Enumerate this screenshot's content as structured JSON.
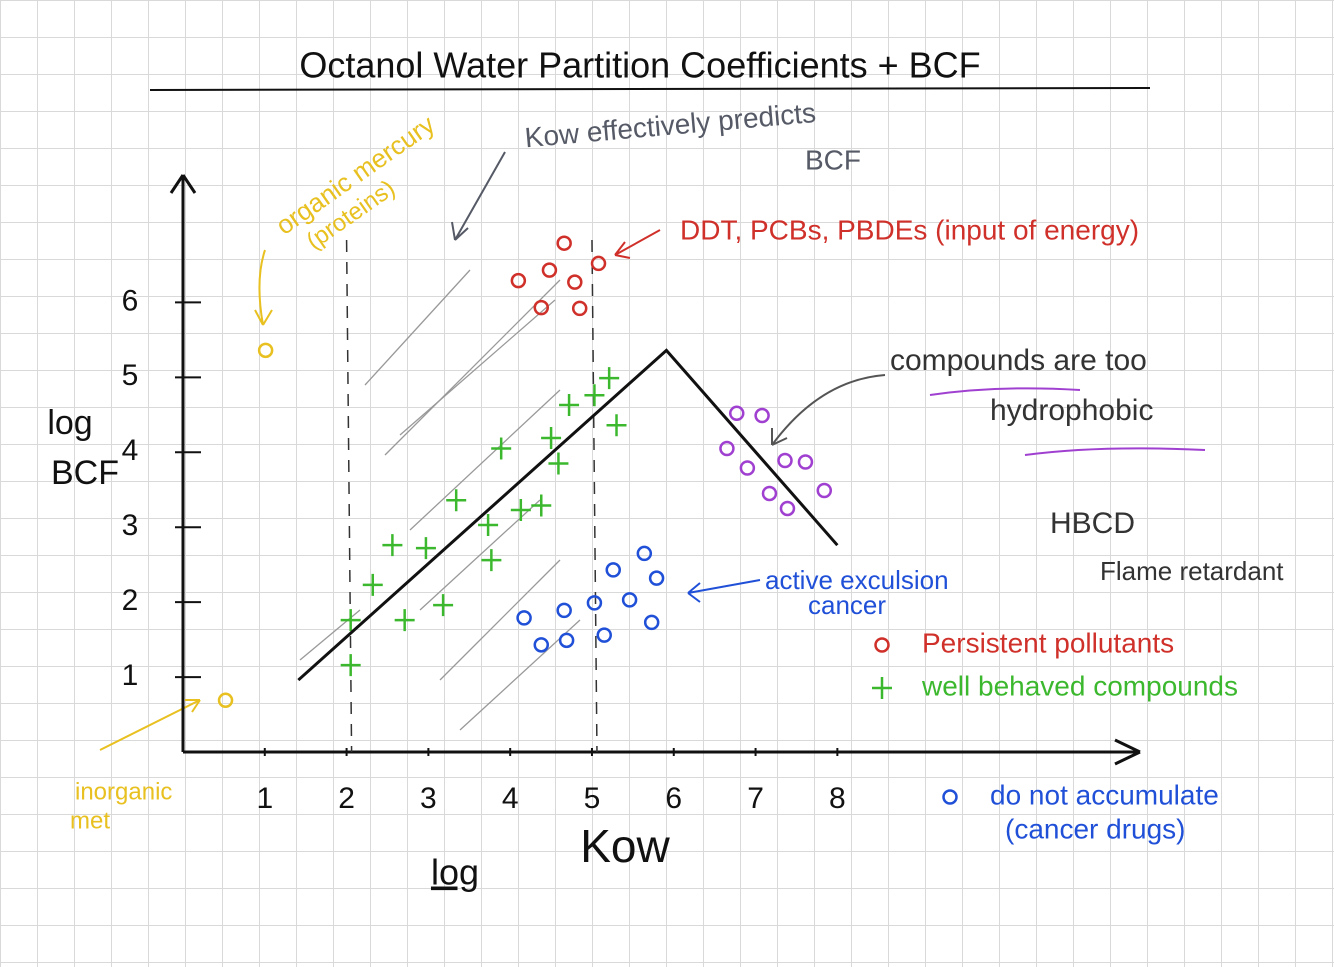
{
  "chart_data": {
    "type": "scatter",
    "title": "Octanol Water Partition Coefficients + BCF",
    "xlabel": "Kow",
    "xlabel_prefix": "log",
    "ylabel": [
      "log",
      "BCF"
    ],
    "xlim": [
      0,
      11.7
    ],
    "ylim": [
      0,
      7.7
    ],
    "xticks": [
      1,
      2,
      3,
      4,
      5,
      6,
      7,
      8
    ],
    "yticks": [
      1,
      2,
      3,
      4,
      5,
      6
    ],
    "vlines": [
      2,
      5
    ],
    "series": [
      {
        "name": "Persistent pollutants",
        "color": "#d0302a",
        "marker": "o",
        "x": [
          4.66,
          4.1,
          4.48,
          4.79,
          5.08,
          4.38,
          4.85
        ],
        "values": [
          6.79,
          6.29,
          6.43,
          6.27,
          6.52,
          5.93,
          5.92
        ]
      },
      {
        "name": "well behaved compounds",
        "color": "#3cb82e",
        "marker": "+",
        "x": [
          2.05,
          2.05,
          2.32,
          2.71,
          2.56,
          2.97,
          3.18,
          3.34,
          3.77,
          3.73,
          4.13,
          4.38,
          3.89,
          4.5,
          4.59,
          4.72,
          5.03,
          5.21,
          5.3
        ],
        "values": [
          1.16,
          1.76,
          2.23,
          1.76,
          2.76,
          2.72,
          1.96,
          3.36,
          2.56,
          3.03,
          3.23,
          3.29,
          4.05,
          4.19,
          3.85,
          4.63,
          4.76,
          4.99,
          4.36
        ]
      },
      {
        "name": "do not accumulate",
        "subname": "(cancer drugs)",
        "color": "#2050d8",
        "marker": "o",
        "x": [
          5.64,
          5.26,
          5.79,
          4.66,
          5.03,
          5.46,
          4.17,
          4.38,
          4.69,
          5.15,
          5.73
        ],
        "values": [
          2.65,
          2.43,
          2.32,
          1.89,
          1.99,
          2.03,
          1.79,
          1.43,
          1.49,
          1.56,
          1.73
        ]
      },
      {
        "color": "#a040d0",
        "marker": "o",
        "x": [
          6.77,
          7.08,
          6.65,
          6.9,
          7.36,
          7.61,
          7.17,
          7.39,
          7.84
        ],
        "values": [
          4.52,
          4.49,
          4.05,
          3.79,
          3.89,
          3.87,
          3.45,
          3.25,
          3.49
        ]
      },
      {
        "color": "#e8c020",
        "marker": "o",
        "x": [
          1.01,
          0.52
        ],
        "values": [
          5.36,
          0.69
        ]
      },
      {
        "color": "#111111",
        "marker": "line",
        "x": [
          1.41,
          5.91,
          8.0
        ],
        "values": [
          0.96,
          5.36,
          2.76
        ]
      }
    ],
    "annotations": [
      {
        "text": "Kow effectively predicts",
        "color": "#555a66"
      },
      {
        "text": "BCF",
        "color": "#555a66"
      },
      {
        "text": "organic mercury",
        "color": "#e8c020"
      },
      {
        "text": "(proteins)",
        "color": "#e8c020"
      },
      {
        "text": "DDT, PCBs, PBDEs (input of energy)",
        "color": "#d0302a"
      },
      {
        "text": "compounds are too",
        "color": "#333333"
      },
      {
        "text": "hydrophobic",
        "color": "#333333"
      },
      {
        "text": "HBCD",
        "color": "#333333"
      },
      {
        "text": "Flame retardant",
        "color": "#333333"
      },
      {
        "text": "active exculsion",
        "color": "#2050d8"
      },
      {
        "text": "cancer",
        "color": "#2050d8"
      },
      {
        "text": "inorganic",
        "color": "#e8c020"
      },
      {
        "text": "met",
        "color": "#e8c020"
      }
    ]
  }
}
